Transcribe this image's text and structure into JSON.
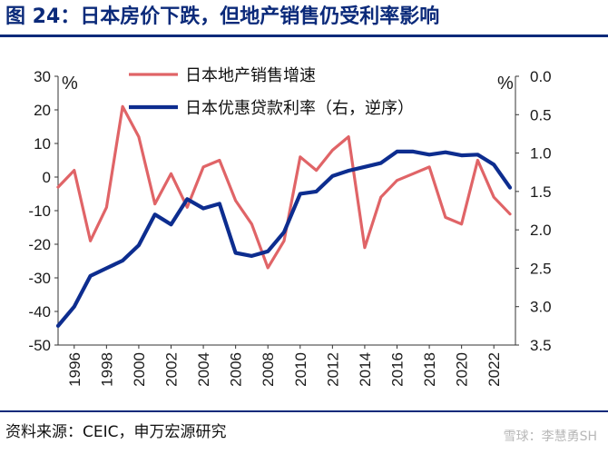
{
  "title": "图 24：日本房价下跌，但地产销售仍受利率影响",
  "source": "资料来源：CEIC，申万宏源研究",
  "watermark": "雪球：李慧勇SH",
  "colors": {
    "title": "#0b2a7a",
    "sales": "#e06467",
    "rate": "#0d2d8f"
  },
  "chart_data": {
    "type": "line",
    "left_unit": "%",
    "right_unit": "%",
    "left_ylim": [
      -50,
      30
    ],
    "left_ticks": [
      30,
      20,
      10,
      0,
      -10,
      -20,
      -30,
      -40,
      -50
    ],
    "right_ylim": [
      0.0,
      3.5
    ],
    "right_inverted": true,
    "right_ticks": [
      "0.0",
      "0.5",
      "1.0",
      "1.5",
      "2.0",
      "2.5",
      "3.0",
      "3.5"
    ],
    "x_ticks": [
      "1996",
      "1998",
      "2000",
      "2002",
      "2004",
      "2006",
      "2008",
      "2010",
      "2012",
      "2014",
      "2016",
      "2018",
      "2020",
      "2022"
    ],
    "legend_placement": "top",
    "series": [
      {
        "name": "日本地产销售增速",
        "axis": "left",
        "x": [
          1995,
          1996,
          1997,
          1998,
          1999,
          2000,
          2001,
          2002,
          2003,
          2004,
          2005,
          2006,
          2007,
          2008,
          2009,
          2010,
          2011,
          2012,
          2013,
          2014,
          2015,
          2016,
          2017,
          2018,
          2019,
          2020,
          2021,
          2022,
          2023
        ],
        "values": [
          -3,
          2,
          -19,
          -9,
          21,
          12,
          -8,
          1,
          -9,
          3,
          5,
          -7,
          -14,
          -27,
          -19,
          6,
          2,
          8,
          12,
          -21,
          -6,
          -1,
          1,
          3,
          -12,
          -14,
          5,
          -6,
          -11
        ]
      },
      {
        "name": "日本优惠贷款利率（右，逆序）",
        "axis": "right",
        "x": [
          1995,
          1996,
          1997,
          1998,
          1999,
          2000,
          2001,
          2002,
          2003,
          2004,
          2005,
          2006,
          2007,
          2008,
          2009,
          2010,
          2011,
          2012,
          2013,
          2014,
          2015,
          2016,
          2017,
          2018,
          2019,
          2020,
          2021,
          2022,
          2023
        ],
        "values": [
          3.25,
          3.0,
          2.6,
          2.5,
          2.4,
          2.2,
          1.8,
          1.93,
          1.6,
          1.72,
          1.66,
          2.3,
          2.34,
          2.28,
          2.03,
          1.53,
          1.5,
          1.3,
          1.23,
          1.18,
          1.13,
          0.98,
          0.98,
          1.02,
          0.99,
          1.03,
          1.02,
          1.15,
          1.45
        ]
      }
    ]
  }
}
